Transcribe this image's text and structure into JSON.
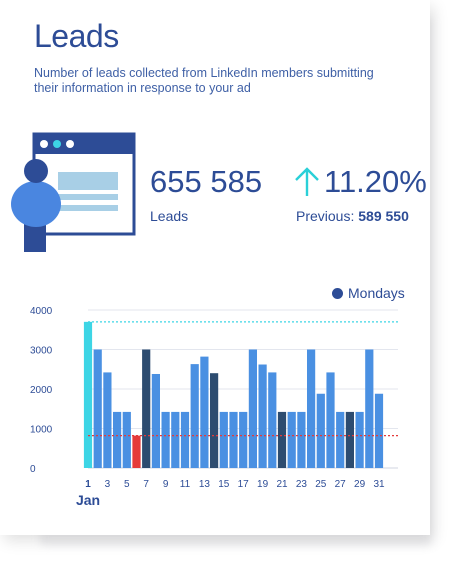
{
  "header": {
    "title": "Leads",
    "subtitle": "Number of leads collected from LinkedIn members submitting their information in response to your ad"
  },
  "kpi": {
    "value": "655 585",
    "label": "Leads",
    "change": "11.20%",
    "previous_label": "Previous:",
    "previous_value": "589 550"
  },
  "colors": {
    "accent": "#2d4c96",
    "bar": "#4a90e2",
    "monday": "#2d4c70",
    "first": "#3dd5e5",
    "low": "#e53a3a"
  },
  "chart_data": {
    "type": "bar",
    "title": "",
    "xlabel": "",
    "ylabel": "",
    "ylim": [
      0,
      4000
    ],
    "yticks": [
      "4000",
      "3000",
      "2000",
      "1000",
      "0"
    ],
    "legend": {
      "label": "Mondays",
      "placement": "top-right"
    },
    "month_label": "Jan",
    "days": [
      1,
      2,
      3,
      4,
      5,
      6,
      7,
      8,
      9,
      10,
      11,
      12,
      13,
      14,
      15,
      16,
      17,
      18,
      19,
      20,
      21,
      22,
      23,
      24,
      25,
      26,
      27,
      28,
      29,
      30,
      31
    ],
    "xtick_labels": [
      "1",
      "3",
      "5",
      "7",
      "9",
      "11",
      "13",
      "15",
      "17",
      "19",
      "21",
      "23",
      "25",
      "27",
      "29",
      "31"
    ],
    "values": [
      3700,
      3000,
      2420,
      1420,
      1420,
      820,
      3000,
      2380,
      1420,
      1420,
      1420,
      2630,
      2820,
      2400,
      1420,
      1420,
      1420,
      3000,
      2620,
      2420,
      1420,
      1420,
      1420,
      3000,
      1880,
      2420,
      1420,
      1420,
      1420,
      3000,
      1880
    ],
    "mondays": [
      7,
      14,
      21,
      28
    ],
    "max_day": 1,
    "min_day": 6,
    "max_ref": 3700,
    "min_ref": 820
  }
}
